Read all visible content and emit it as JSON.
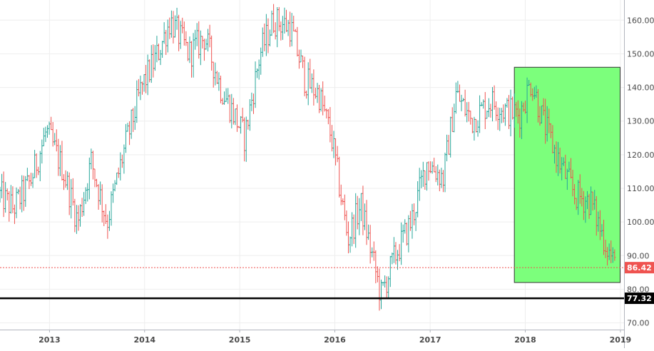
{
  "chart_data": {
    "type": "ohlc",
    "title": "",
    "xlabel": "",
    "ylabel": "",
    "ylim": [
      68,
      166
    ],
    "xlim": [
      "2012-06-25",
      "2019-01-15"
    ],
    "grid": true,
    "y_ticks": [
      70,
      80,
      90,
      100,
      110,
      120,
      130,
      140,
      150,
      160
    ],
    "y_tick_labels": [
      "70.00",
      "80.00",
      "90.00",
      "100.00",
      "110.00",
      "120.00",
      "130.00",
      "140.00",
      "150.00",
      "160.00"
    ],
    "x_tick_labels": [
      "2013",
      "2014",
      "2015",
      "2016",
      "2017",
      "2018",
      "2019"
    ],
    "x_tick_dates": [
      "2013-01-01",
      "2014-01-01",
      "2015-01-01",
      "2016-01-01",
      "2017-01-01",
      "2018-01-01",
      "2019-01-01"
    ],
    "colors": {
      "up": "#26a69a",
      "down": "#ef5350",
      "highlight": "#7cff7c",
      "last_price_line": "#ef5350",
      "support_line": "#000000"
    },
    "anchors": [
      [
        "2012-06-25",
        108
      ],
      [
        "2012-08-15",
        104
      ],
      [
        "2012-10-20",
        112
      ],
      [
        "2012-12-20",
        127
      ],
      [
        "2013-02-20",
        116
      ],
      [
        "2013-04-20",
        100
      ],
      [
        "2013-06-10",
        118
      ],
      [
        "2013-08-10",
        100
      ],
      [
        "2013-10-10",
        120
      ],
      [
        "2013-12-20",
        140
      ],
      [
        "2014-02-20",
        150
      ],
      [
        "2014-04-10",
        160
      ],
      [
        "2014-06-20",
        150
      ],
      [
        "2014-08-20",
        155
      ],
      [
        "2014-10-20",
        140
      ],
      [
        "2014-12-10",
        132
      ],
      [
        "2015-01-20",
        125
      ],
      [
        "2015-03-20",
        150
      ],
      [
        "2015-05-10",
        160
      ],
      [
        "2015-07-15",
        158
      ],
      [
        "2015-09-10",
        142
      ],
      [
        "2015-11-01",
        138
      ],
      [
        "2015-12-20",
        125
      ],
      [
        "2016-02-20",
        95
      ],
      [
        "2016-04-10",
        105
      ],
      [
        "2016-06-26",
        78
      ],
      [
        "2016-08-20",
        90
      ],
      [
        "2016-10-20",
        100
      ],
      [
        "2016-12-20",
        118
      ],
      [
        "2017-02-20",
        113
      ],
      [
        "2017-04-10",
        138
      ],
      [
        "2017-06-10",
        130
      ],
      [
        "2017-08-20",
        136
      ],
      [
        "2017-10-20",
        133
      ],
      [
        "2017-12-10",
        132
      ],
      [
        "2018-01-25",
        142
      ],
      [
        "2018-03-10",
        130
      ],
      [
        "2018-05-10",
        118
      ],
      [
        "2018-07-10",
        108
      ],
      [
        "2018-09-10",
        106
      ],
      [
        "2018-10-20",
        97
      ],
      [
        "2018-12-15",
        86
      ]
    ],
    "highlight_box": {
      "x_start": "2017-11-20",
      "x_end": "2018-12-31",
      "y_low": 82,
      "y_high": 146
    },
    "horizontal_lines": [
      {
        "name": "last-price",
        "value": 86.42,
        "label": "86.42",
        "style": "dotted"
      },
      {
        "name": "support",
        "value": 77.32,
        "label": "77.32",
        "style": "solid"
      }
    ]
  }
}
